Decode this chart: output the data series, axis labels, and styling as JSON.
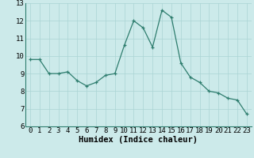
{
  "x": [
    0,
    1,
    2,
    3,
    4,
    5,
    6,
    7,
    8,
    9,
    10,
    11,
    12,
    13,
    14,
    15,
    16,
    17,
    18,
    19,
    20,
    21,
    22,
    23
  ],
  "y": [
    9.8,
    9.8,
    9.0,
    9.0,
    9.1,
    8.6,
    8.3,
    8.5,
    8.9,
    9.0,
    10.6,
    12.0,
    11.6,
    10.5,
    12.6,
    12.2,
    9.6,
    8.8,
    8.5,
    8.0,
    7.9,
    7.6,
    7.5,
    6.7
  ],
  "xlim": [
    -0.5,
    23.5
  ],
  "ylim": [
    6,
    13
  ],
  "yticks": [
    6,
    7,
    8,
    9,
    10,
    11,
    12,
    13
  ],
  "xticks": [
    0,
    1,
    2,
    3,
    4,
    5,
    6,
    7,
    8,
    9,
    10,
    11,
    12,
    13,
    14,
    15,
    16,
    17,
    18,
    19,
    20,
    21,
    22,
    23
  ],
  "xlabel": "Humidex (Indice chaleur)",
  "line_color": "#2e7d6e",
  "bg_color": "#cceaea",
  "grid_color": "#aad4d4",
  "tick_label_fontsize": 6.5,
  "xlabel_fontsize": 7.5,
  "marker": "+"
}
